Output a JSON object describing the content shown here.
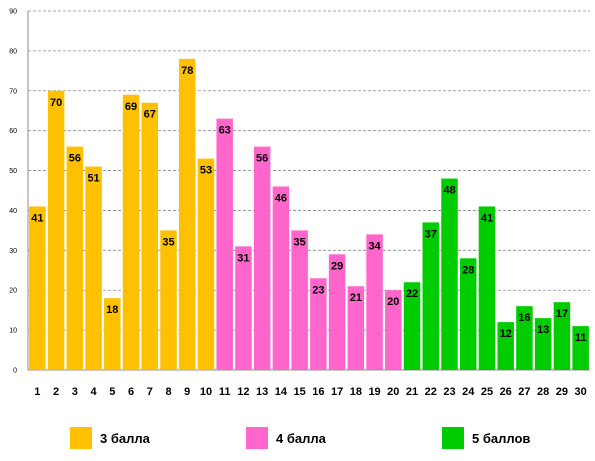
{
  "chart_data": {
    "type": "bar",
    "categories": [
      "1",
      "2",
      "3",
      "4",
      "5",
      "6",
      "7",
      "8",
      "9",
      "10",
      "11",
      "12",
      "13",
      "14",
      "15",
      "16",
      "17",
      "18",
      "19",
      "20",
      "21",
      "22",
      "23",
      "24",
      "25",
      "26",
      "27",
      "28",
      "29",
      "30"
    ],
    "values": [
      41,
      70,
      56,
      51,
      18,
      69,
      67,
      35,
      78,
      53,
      63,
      31,
      56,
      46,
      35,
      23,
      29,
      21,
      34,
      20,
      22,
      37,
      48,
      28,
      41,
      12,
      16,
      13,
      17,
      11
    ],
    "groups": [
      0,
      0,
      0,
      0,
      0,
      0,
      0,
      0,
      0,
      0,
      1,
      1,
      1,
      1,
      1,
      1,
      1,
      1,
      1,
      1,
      2,
      2,
      2,
      2,
      2,
      2,
      2,
      2,
      2,
      2
    ],
    "ylim": [
      0,
      90
    ],
    "yticks": [
      0,
      10,
      20,
      30,
      40,
      50,
      60,
      70,
      80,
      90
    ],
    "grid": true,
    "data_labels": true,
    "legend_position": "bottom",
    "legend": [
      {
        "label": "3 балла",
        "color": "#FFC000"
      },
      {
        "label": "4 балла",
        "color": "#FF66CC"
      },
      {
        "label": "5 баллов",
        "color": "#00CC00"
      }
    ]
  }
}
